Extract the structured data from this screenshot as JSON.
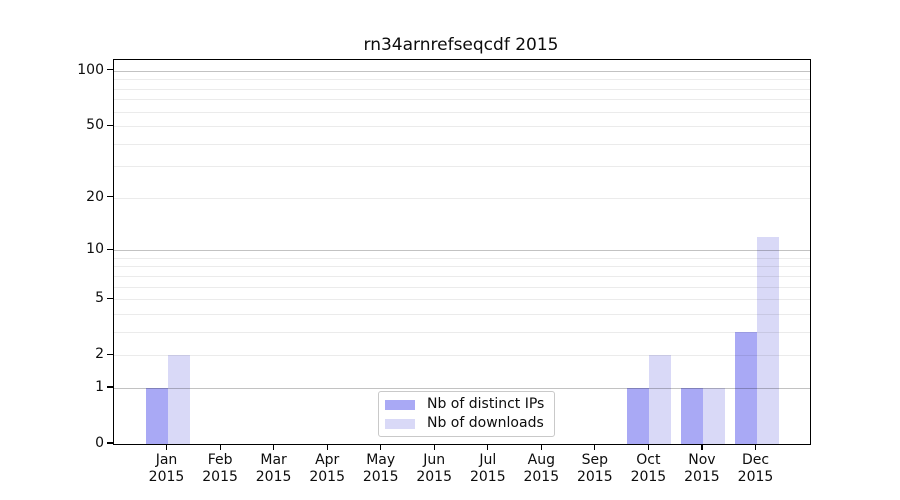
{
  "title": "rn34arnrefseqcdf 2015",
  "chart_data": {
    "type": "bar",
    "title": "rn34arnrefseqcdf 2015",
    "categories": [
      "Jan 2015",
      "Feb 2015",
      "Mar 2015",
      "Apr 2015",
      "May 2015",
      "Jun 2015",
      "Jul 2015",
      "Aug 2015",
      "Sep 2015",
      "Oct 2015",
      "Nov 2015",
      "Dec 2015"
    ],
    "series": [
      {
        "name": "Nb of distinct IPs",
        "color": "#a9a9f5",
        "values": [
          1,
          0,
          0,
          0,
          0,
          0,
          0,
          0,
          0,
          1,
          1,
          3
        ]
      },
      {
        "name": "Nb of downloads",
        "color": "#d9d9f7",
        "values": [
          2,
          0,
          0,
          0,
          0,
          0,
          0,
          0,
          0,
          2,
          1,
          12
        ]
      }
    ],
    "yscale": "log10(1+y)",
    "y_ticks": [
      0,
      1,
      2,
      5,
      10,
      20,
      50,
      100
    ],
    "ylim": [
      0,
      115
    ],
    "grid": "horizontal-gray",
    "legend_position": "inside-bottom-center"
  }
}
